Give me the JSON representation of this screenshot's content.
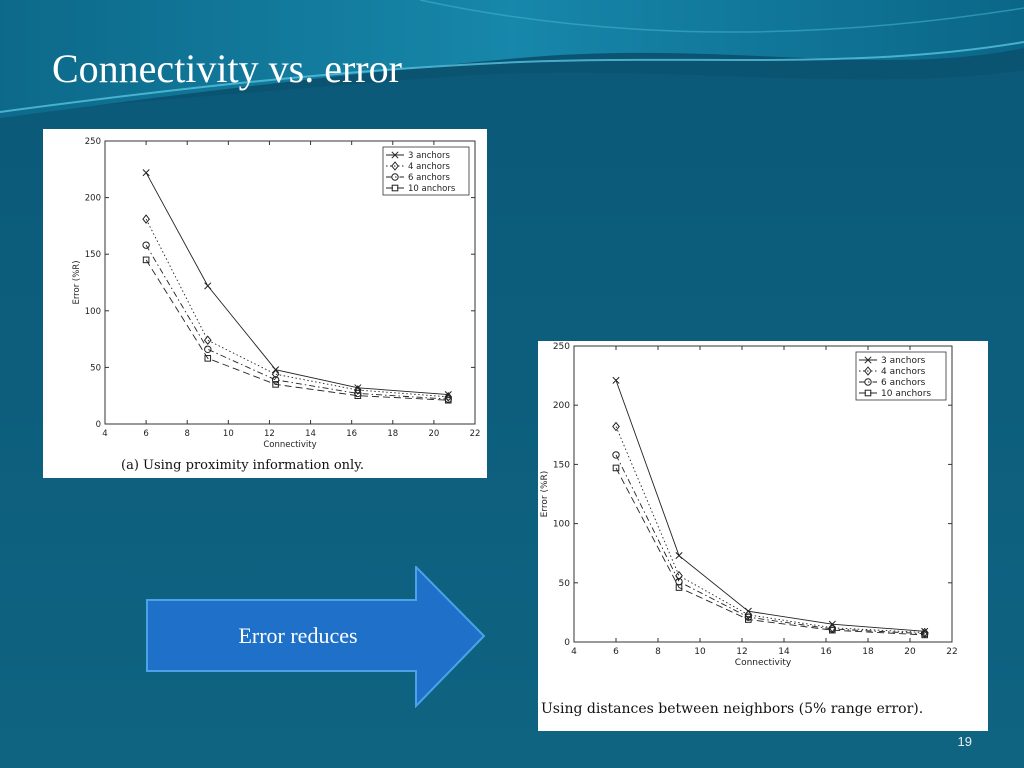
{
  "slide": {
    "title": "Connectivity vs. error",
    "page_number": "19"
  },
  "arrow": {
    "label": "Error reduces"
  },
  "chart_data": [
    {
      "type": "line",
      "caption": "(a)  Using proximity information only.",
      "xlabel": "Connectivity",
      "ylabel": "Error (%R)",
      "xlim": [
        4,
        22
      ],
      "ylim": [
        0,
        250
      ],
      "xticks": [
        4,
        6,
        8,
        10,
        12,
        14,
        16,
        18,
        20,
        22
      ],
      "yticks": [
        0,
        50,
        100,
        150,
        200,
        250
      ],
      "legend_position": "top-right",
      "x": [
        6,
        9,
        12.3,
        16.3,
        20.7
      ],
      "series": [
        {
          "name": "3 anchors",
          "marker": "x",
          "dash": "solid",
          "values": [
            222,
            122,
            48,
            32,
            26
          ]
        },
        {
          "name": "4 anchors",
          "marker": "diamond",
          "dash": "dotted",
          "values": [
            181,
            74,
            44,
            30,
            24
          ]
        },
        {
          "name": "6 anchors",
          "marker": "circle",
          "dash": "dashdot",
          "values": [
            158,
            66,
            39,
            27,
            22
          ]
        },
        {
          "name": "10 anchors",
          "marker": "square",
          "dash": "dashed",
          "values": [
            145,
            58,
            35,
            25,
            21
          ]
        }
      ]
    },
    {
      "type": "line",
      "caption": "Using distances between neighbors (5% range error).",
      "xlabel": "Connectivity",
      "ylabel": "Error (%R)",
      "xlim": [
        4,
        22
      ],
      "ylim": [
        0,
        250
      ],
      "xticks": [
        4,
        6,
        8,
        10,
        12,
        14,
        16,
        18,
        20,
        22
      ],
      "yticks": [
        0,
        50,
        100,
        150,
        200,
        250
      ],
      "legend_position": "top-right",
      "x": [
        6,
        9,
        12.3,
        16.3,
        20.7
      ],
      "series": [
        {
          "name": "3 anchors",
          "marker": "x",
          "dash": "solid",
          "values": [
            221,
            73,
            26,
            15,
            9
          ]
        },
        {
          "name": "4 anchors",
          "marker": "diamond",
          "dash": "dotted",
          "values": [
            182,
            56,
            23,
            12,
            8
          ]
        },
        {
          "name": "6 anchors",
          "marker": "circle",
          "dash": "dashdot",
          "values": [
            158,
            51,
            21,
            11,
            7
          ]
        },
        {
          "name": "10 anchors",
          "marker": "square",
          "dash": "dashed",
          "values": [
            147,
            46,
            19,
            10,
            6
          ]
        }
      ]
    }
  ]
}
